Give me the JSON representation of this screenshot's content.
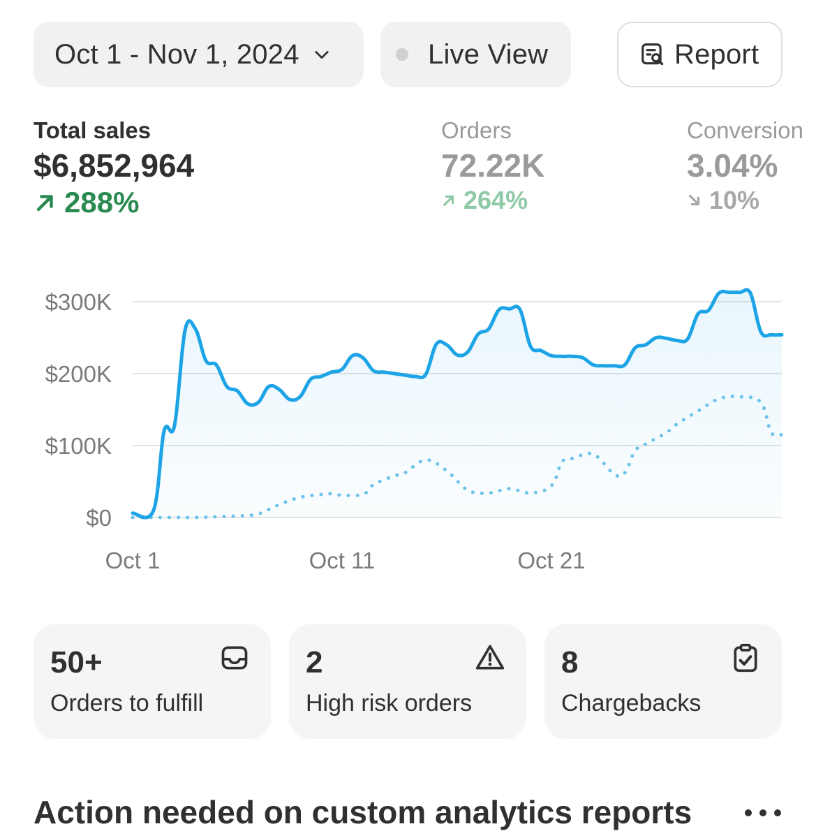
{
  "toolbar": {
    "date_range": "Oct 1 - Nov 1, 2024",
    "live_view": "Live View",
    "report": "Report"
  },
  "metrics": {
    "total_sales": {
      "label": "Total sales",
      "value": "$6,852,964",
      "delta": "288%",
      "direction": "up"
    },
    "orders": {
      "label": "Orders",
      "value": "72.22K",
      "delta": "264%",
      "direction": "up"
    },
    "conversion": {
      "label": "Conversion",
      "value": "3.04%",
      "delta": "10%",
      "direction": "down"
    }
  },
  "chart_data": {
    "type": "line",
    "x_ticks": [
      "Oct 1",
      "Oct 11",
      "Oct 21"
    ],
    "y_ticks": [
      "$0",
      "$100K",
      "$200K",
      "$300K"
    ],
    "ylim": [
      0,
      300000
    ],
    "x_days": [
      1,
      32
    ],
    "series": [
      {
        "style": "solid",
        "color": "#1da4e6",
        "x": [
          1,
          2,
          2.5,
          3,
          3.5,
          4,
          4.5,
          5,
          5.5,
          6,
          6.5,
          7,
          7.5,
          8,
          8.5,
          9,
          9.5,
          10,
          10.5,
          11,
          11.5,
          12,
          12.5,
          13,
          13.5,
          14,
          14.5,
          15,
          15.5,
          16,
          16.5,
          17,
          17.5,
          18,
          18.5,
          19,
          19.5,
          20,
          20.5,
          21,
          21.5,
          22,
          22.5,
          23,
          23.5,
          24,
          24.5,
          25,
          25.5,
          26,
          26.5,
          27,
          27.5,
          28,
          28.5,
          29,
          29.5,
          30,
          30.5,
          31,
          31.5,
          32
        ],
        "values": [
          6000,
          10000,
          120000,
          128000,
          260000,
          262000,
          218000,
          212000,
          182000,
          176000,
          158000,
          160000,
          182000,
          178000,
          164000,
          168000,
          192000,
          196000,
          202000,
          206000,
          225000,
          222000,
          204000,
          202000,
          200000,
          198000,
          196000,
          199000,
          241000,
          240000,
          226000,
          230000,
          255000,
          262000,
          289000,
          290000,
          289000,
          238000,
          232000,
          225000,
          224000,
          224000,
          222000,
          212000,
          211000,
          211000,
          212000,
          236000,
          240000,
          250000,
          249000,
          246000,
          248000,
          283000,
          288000,
          312000,
          313000,
          313000,
          312000,
          258000,
          254000,
          254000
        ]
      },
      {
        "style": "dotted",
        "color": "#6cc2ea",
        "x": [
          1,
          2,
          3,
          4,
          5,
          6,
          7,
          8,
          9,
          10,
          10.5,
          11,
          12,
          12.5,
          13,
          13.5,
          14,
          15,
          16,
          17,
          18,
          19,
          20,
          21,
          21.5,
          22,
          23,
          24,
          24.5,
          25,
          25.5,
          26,
          26.5,
          27,
          28,
          29,
          30,
          31,
          31.5,
          32
        ],
        "values": [
          0,
          0,
          0,
          0,
          1000,
          2000,
          5000,
          18000,
          28000,
          32000,
          33000,
          31000,
          32000,
          46000,
          52000,
          58000,
          62000,
          80000,
          65000,
          38000,
          34000,
          40000,
          34000,
          44000,
          77000,
          82000,
          88000,
          60000,
          62000,
          93000,
          102000,
          110000,
          118000,
          130000,
          148000,
          165000,
          168000,
          160000,
          118000,
          115000
        ]
      }
    ]
  },
  "cards": [
    {
      "value": "50+",
      "label": "Orders to fulfill",
      "icon": "inbox-icon"
    },
    {
      "value": "2",
      "label": "High risk orders",
      "icon": "alert-triangle-icon"
    },
    {
      "value": "8",
      "label": "Chargebacks",
      "icon": "clipboard-check-icon"
    }
  ],
  "section": {
    "title": "Action needed on custom analytics reports"
  }
}
